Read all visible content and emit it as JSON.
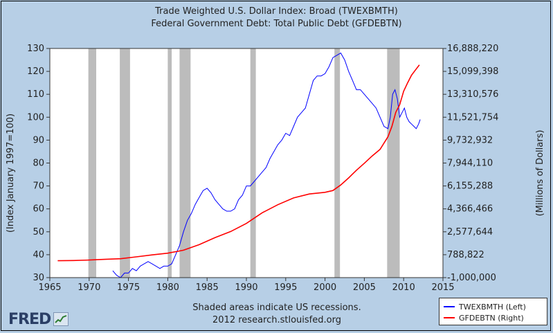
{
  "chart_data": {
    "type": "line",
    "title": "Trade Weighted U.S. Dollar Index: Broad (TWEXBMTH)",
    "subtitle": "Federal Government Debt: Total Public Debt (GFDEBTN)",
    "xlabel": "",
    "ylabel_left": "(Index January 1997=100)",
    "ylabel_right": "(Millions of Dollars)",
    "xlim": [
      1965,
      2015
    ],
    "ylim_left": [
      30,
      130
    ],
    "ylim_right": [
      -1000000,
      16888220
    ],
    "x_ticks": [
      "1965",
      "1970",
      "1975",
      "1980",
      "1985",
      "1990",
      "1995",
      "2000",
      "2005",
      "2010",
      "2015"
    ],
    "y_ticks_left": [
      "30",
      "40",
      "50",
      "60",
      "70",
      "80",
      "90",
      "100",
      "110",
      "120",
      "130"
    ],
    "y_ticks_right": [
      "-1,000,000",
      "788,822",
      "2,577,644",
      "4,366,466",
      "6,155,288",
      "7,944,110",
      "9,732,932",
      "11,521,754",
      "13,310,576",
      "15,099,398",
      "16,888,220"
    ],
    "grid": false,
    "recessions": [
      [
        1969.9,
        1970.9
      ],
      [
        1973.9,
        1975.2
      ],
      [
        1980.0,
        1980.5
      ],
      [
        1981.5,
        1982.9
      ],
      [
        1990.5,
        1991.2
      ],
      [
        2001.2,
        2001.9
      ],
      [
        2007.9,
        2009.5
      ]
    ],
    "series": [
      {
        "name": "TWEXBMTH (Left)",
        "axis": "left",
        "color": "#0000ff",
        "x": [
          1973.0,
          1973.5,
          1974.0,
          1974.5,
          1975.0,
          1975.5,
          1976.0,
          1976.5,
          1977.0,
          1977.5,
          1978.0,
          1978.5,
          1979.0,
          1979.5,
          1980.0,
          1980.5,
          1981.0,
          1981.5,
          1982.0,
          1982.5,
          1983.0,
          1983.5,
          1984.0,
          1984.5,
          1985.0,
          1985.5,
          1986.0,
          1986.5,
          1987.0,
          1987.5,
          1988.0,
          1988.5,
          1989.0,
          1989.5,
          1990.0,
          1990.5,
          1991.0,
          1991.5,
          1992.0,
          1992.5,
          1993.0,
          1993.5,
          1994.0,
          1994.5,
          1995.0,
          1995.5,
          1996.0,
          1996.5,
          1997.0,
          1997.5,
          1998.0,
          1998.5,
          1999.0,
          1999.5,
          2000.0,
          2000.5,
          2001.0,
          2001.5,
          2002.0,
          2002.5,
          2003.0,
          2003.5,
          2004.0,
          2004.5,
          2005.0,
          2005.5,
          2006.0,
          2006.5,
          2007.0,
          2007.5,
          2008.0,
          2008.3,
          2008.6,
          2008.9,
          2009.2,
          2009.5,
          2009.8,
          2010.1,
          2010.4,
          2010.7,
          2011.0,
          2011.3,
          2011.6,
          2011.9,
          2012.1
        ],
        "y": [
          33,
          31,
          30,
          32,
          32,
          34,
          33,
          35,
          36,
          37,
          36,
          35,
          34,
          35,
          35,
          36,
          40,
          44,
          50,
          55,
          58,
          62,
          65,
          68,
          69,
          67,
          64,
          62,
          60,
          59,
          59,
          60,
          64,
          66,
          70,
          70,
          72,
          74,
          76,
          78,
          82,
          85,
          88,
          90,
          93,
          92,
          96,
          100,
          102,
          104,
          110,
          116,
          118,
          118,
          119,
          122,
          126,
          127,
          128,
          125,
          120,
          116,
          112,
          112,
          110,
          108,
          106,
          104,
          100,
          96,
          95,
          100,
          110,
          112,
          108,
          100,
          102,
          104,
          100,
          98,
          97,
          96,
          95,
          97,
          99
        ]
      },
      {
        "name": "GFDEBTN (Right)",
        "axis": "right",
        "color": "#ff0000",
        "x": [
          1966,
          1968,
          1970,
          1972,
          1974,
          1976,
          1978,
          1980,
          1982,
          1984,
          1986,
          1988,
          1990,
          1992,
          1994,
          1996,
          1998,
          2000,
          2001,
          2002,
          2003,
          2004,
          2005,
          2006,
          2007,
          2008,
          2008.5,
          2009,
          2009.5,
          2010,
          2010.5,
          2011,
          2011.5,
          2012
        ],
        "y": [
          320000,
          335000,
          370000,
          425000,
          475000,
          620000,
          775000,
          910000,
          1140000,
          1570000,
          2120000,
          2600000,
          3230000,
          4060000,
          4690000,
          5220000,
          5530000,
          5660000,
          5800000,
          6230000,
          6780000,
          7380000,
          7930000,
          8500000,
          9010000,
          9990000,
          10800000,
          11900000,
          12500000,
          13550000,
          14200000,
          14800000,
          15200000,
          15600000
        ]
      }
    ],
    "notes": [
      "Shaded areas indicate US recessions.",
      "2012 research.stlouisfed.org"
    ]
  },
  "logo": {
    "text": "FRED"
  }
}
